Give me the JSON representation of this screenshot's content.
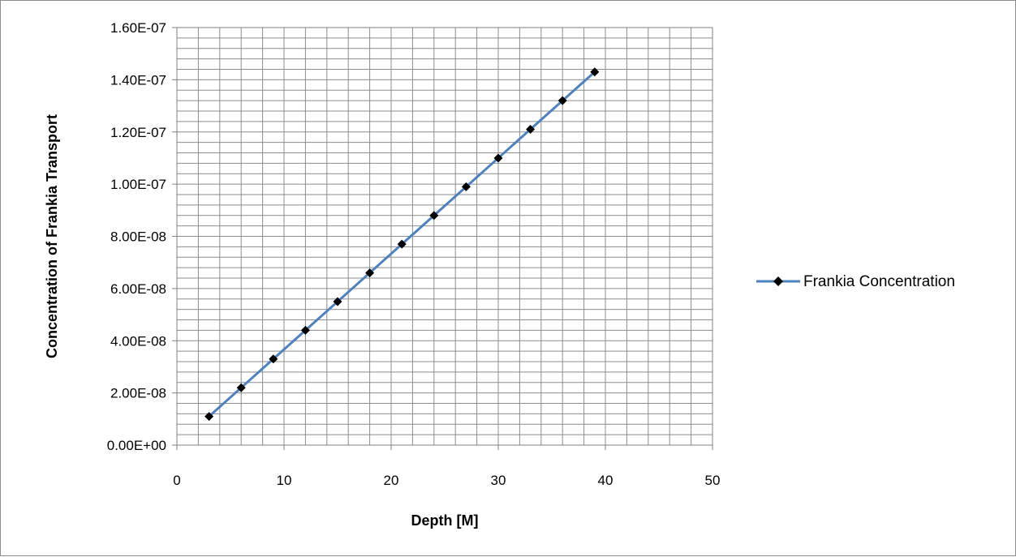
{
  "chart_data": {
    "type": "line",
    "title": "",
    "xlabel": "Depth [M]",
    "ylabel": "Concentration of Frankia Transport",
    "xlim": [
      0,
      50
    ],
    "ylim": [
      0,
      1.6e-07
    ],
    "x_ticks": [
      0,
      10,
      20,
      30,
      40,
      50
    ],
    "x_tick_labels": [
      "0",
      "10",
      "20",
      "30",
      "40",
      "50"
    ],
    "y_ticks": [
      0,
      2e-08,
      4e-08,
      6e-08,
      8e-08,
      1e-07,
      1.2e-07,
      1.4e-07,
      1.6e-07
    ],
    "y_tick_labels": [
      "0.00E+00",
      "2.00E-08",
      "4.00E-08",
      "6.00E-08",
      "8.00E-08",
      "1.00E-07",
      "1.20E-07",
      "1.40E-07",
      "1.60E-07"
    ],
    "grid": true,
    "legend_position": "right",
    "series": [
      {
        "name": "Frankia Concentration",
        "color": "#4f81bd",
        "marker": "diamond",
        "marker_color": "#000000",
        "x": [
          3,
          6,
          9,
          12,
          15,
          18,
          21,
          24,
          27,
          30,
          33,
          36,
          39
        ],
        "y": [
          1.1e-08,
          2.2e-08,
          3.3e-08,
          4.4e-08,
          5.5e-08,
          6.6e-08,
          7.7e-08,
          8.8e-08,
          9.9e-08,
          1.1e-07,
          1.21e-07,
          1.32e-07,
          1.43e-07
        ]
      }
    ]
  }
}
